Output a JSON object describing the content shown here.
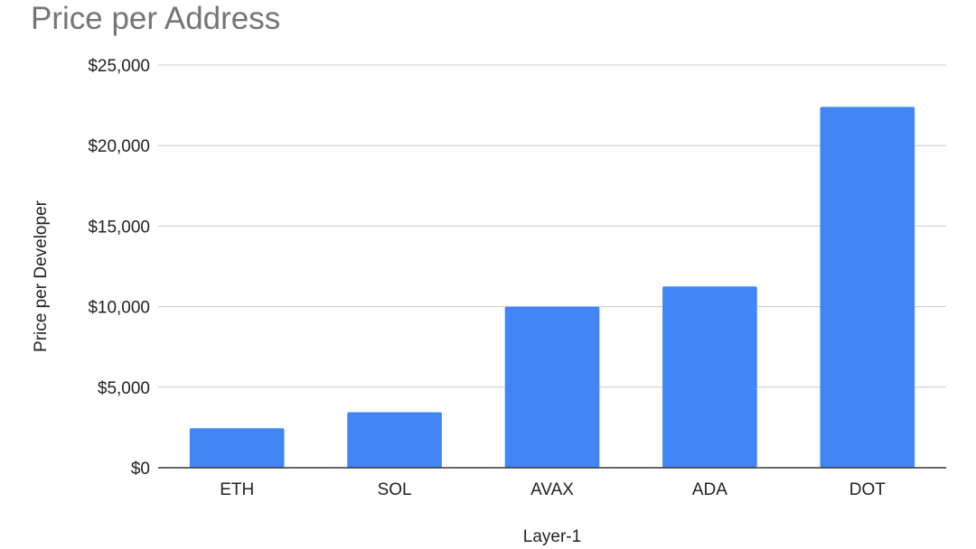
{
  "chart_data": {
    "type": "bar",
    "title": "Price per Address",
    "xlabel": "Layer-1",
    "ylabel": "Price per Developer",
    "categories": [
      "ETH",
      "SOL",
      "AVAX",
      "ADA",
      "DOT"
    ],
    "values": [
      2450,
      3450,
      10000,
      11250,
      22400
    ],
    "ylim": [
      0,
      25000
    ],
    "yticks": [
      0,
      5000,
      10000,
      15000,
      20000,
      25000
    ],
    "ytick_labels": [
      "$0",
      "$5,000",
      "$10,000",
      "$15,000",
      "$20,000",
      "$25,000"
    ],
    "grid": true,
    "legend": "none",
    "bar_color": "#4285f4"
  }
}
